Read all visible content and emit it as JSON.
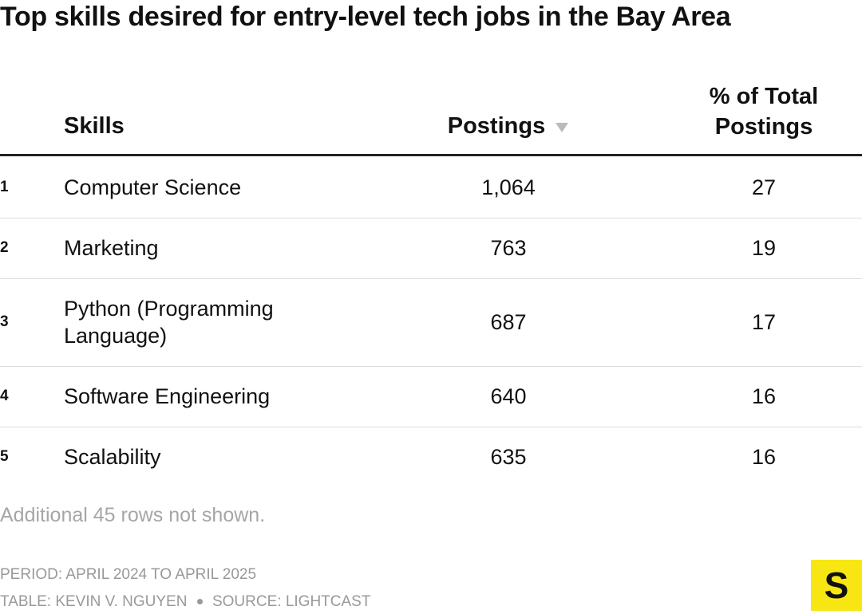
{
  "title": "Top skills desired for entry-level tech jobs in the Bay Area",
  "table": {
    "header": [
      "Skills",
      "Postings",
      "% of Total Postings"
    ],
    "rows": [
      [
        "1",
        "Computer Science",
        "1,064",
        "27"
      ],
      [
        "2",
        "Marketing",
        "763",
        "19"
      ],
      [
        "3",
        "Python (Programming Language)",
        "687",
        "17"
      ],
      [
        "4",
        "Software Engineering",
        "640",
        "16"
      ],
      [
        "5",
        "Scalability",
        "635",
        "16"
      ]
    ]
  },
  "note": "Additional 45 rows not shown.",
  "footer": {
    "period": "PERIOD: APRIL 2024 TO APRIL 2025",
    "credit": "TABLE: KEVIN V. NGUYEN",
    "source": "SOURCE: LIGHTCAST"
  },
  "logo": "S"
}
